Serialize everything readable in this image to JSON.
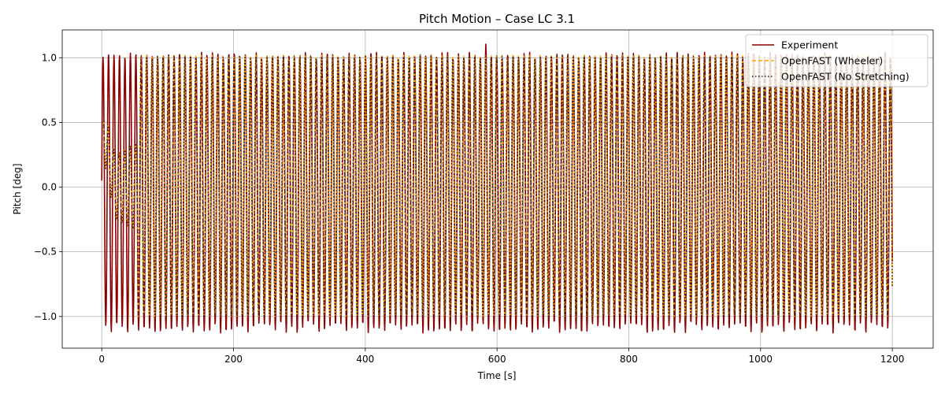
{
  "chart_data": {
    "type": "line",
    "title": "Pitch Motion – Case LC 3.1",
    "xlabel": "Time [s]",
    "ylabel": "Pitch [deg]",
    "xlim": [
      -60,
      1262
    ],
    "ylim": [
      -1.245,
      1.215
    ],
    "xticks": [
      0,
      200,
      400,
      600,
      800,
      1000,
      1200
    ],
    "yticks": [
      -1.0,
      -0.5,
      0.0,
      0.5,
      1.0
    ],
    "ytick_labels": [
      "−1.0",
      "−0.5",
      "0.0",
      "0.5",
      "1.0"
    ],
    "grid": true,
    "legend_position": "top-right",
    "signal": {
      "t_start": 0,
      "t_end": 1200,
      "approx_period_s": 8.3,
      "approx_cycles": 145,
      "experiment_start_value": 0.05,
      "experiment_mean_amplitude": 1.0,
      "experiment_typical_peak": 1.02,
      "experiment_typical_trough": -1.05,
      "experiment_max_peak": 1.1,
      "experiment_min_trough": -1.14,
      "simulation_start_s": 3,
      "simulation_start_value": 0.42,
      "simulation_ramp_end_s": 55,
      "simulation_ramp_amplitude": 0.2,
      "simulation_peak": 1.02,
      "simulation_trough": -1.0
    },
    "series": [
      {
        "name": "Experiment",
        "color": "#8b0000",
        "style": "solid"
      },
      {
        "name": "OpenFAST (Wheeler)",
        "color": "#ffa500",
        "style": "dashed"
      },
      {
        "name": "OpenFAST (No Stretching)",
        "color": "#222222",
        "style": "dotted"
      }
    ]
  }
}
